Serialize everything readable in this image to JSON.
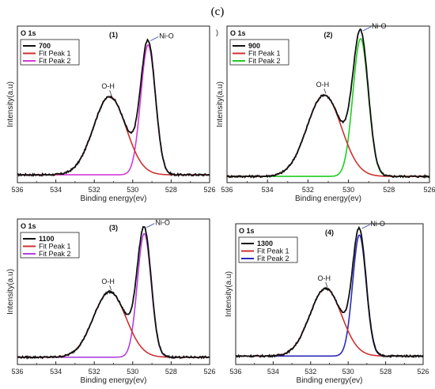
{
  "figure_label": "(c)",
  "stray_mark": ")",
  "chart_data": [
    {
      "type": "line",
      "panel_label": "(1)",
      "corner_label": "O 1s",
      "xlabel": "Binding energy(ev)",
      "ylabel": "Intensity(a.u)",
      "xlim": [
        536,
        526
      ],
      "xticks": [
        "536",
        "534",
        "532",
        "530",
        "528",
        "526"
      ],
      "legend": {
        "position": "top-left",
        "entries": [
          "700",
          "Fit Peak 1",
          "Fit Peak 2"
        ]
      },
      "annotations": [
        "O-H",
        "Ni-O"
      ],
      "colors": {
        "data": "#111111",
        "fit1": "#d03030",
        "fit2": "#d23ad8"
      },
      "baseline": 0.05,
      "peak1": {
        "center": 531.2,
        "amplitude": 0.5,
        "sigma": 0.85
      },
      "peak2": {
        "center": 529.2,
        "amplitude": 0.83,
        "sigma": 0.38
      }
    },
    {
      "type": "line",
      "panel_label": "(2)",
      "corner_label": "O 1s",
      "xlabel": "Binding energy(ev)",
      "ylabel": "Intensity(a.u)",
      "xlim": [
        536,
        526
      ],
      "xticks": [
        "536",
        "534",
        "532",
        "530",
        "528",
        "526"
      ],
      "legend": {
        "position": "top-left",
        "entries": [
          "900",
          "Fit Peak 1",
          "Fit Peak 2"
        ]
      },
      "annotations": [
        "O-H",
        "Ni-O"
      ],
      "colors": {
        "data": "#111111",
        "fit1": "#d03030",
        "fit2": "#22cc22"
      },
      "baseline": 0.04,
      "peak1": {
        "center": 531.2,
        "amplitude": 0.52,
        "sigma": 0.85
      },
      "peak2": {
        "center": 529.4,
        "amplitude": 0.88,
        "sigma": 0.38
      }
    },
    {
      "type": "line",
      "panel_label": "(3)",
      "corner_label": "O 1s",
      "xlabel": "Binding energy(ev)",
      "ylabel": "Intensity(a.u)",
      "xlim": [
        536,
        526
      ],
      "xticks": [
        "536",
        "534",
        "532",
        "530",
        "528",
        "526"
      ],
      "legend": {
        "position": "top-left",
        "entries": [
          "1100",
          "Fit Peak 1",
          "Fit Peak 2"
        ]
      },
      "annotations": [
        "O-H",
        "Ni-O"
      ],
      "colors": {
        "data": "#111111",
        "fit1": "#d03030",
        "fit2": "#b040e0"
      },
      "baseline": 0.05,
      "peak1": {
        "center": 531.2,
        "amplitude": 0.45,
        "sigma": 0.85
      },
      "peak2": {
        "center": 529.4,
        "amplitude": 0.85,
        "sigma": 0.36
      }
    },
    {
      "type": "line",
      "panel_label": "(4)",
      "corner_label": "O 1s",
      "xlabel": "Binding energy(ev)",
      "ylabel": "Intensity(a.u)",
      "xlim": [
        536,
        526
      ],
      "xticks": [
        "536",
        "534",
        "532",
        "530",
        "528",
        "526"
      ],
      "legend": {
        "position": "top-left",
        "entries": [
          "1300",
          "Fit Peak 1",
          "Fit Peak 2"
        ]
      },
      "annotations": [
        "O-H",
        "Ni-O"
      ],
      "colors": {
        "data": "#111111",
        "fit1": "#d03030",
        "fit2": "#2a2ab8"
      },
      "baseline": 0.06,
      "peak1": {
        "center": 531.2,
        "amplitude": 0.48,
        "sigma": 0.85
      },
      "peak2": {
        "center": 529.4,
        "amplitude": 0.86,
        "sigma": 0.36
      }
    }
  ]
}
